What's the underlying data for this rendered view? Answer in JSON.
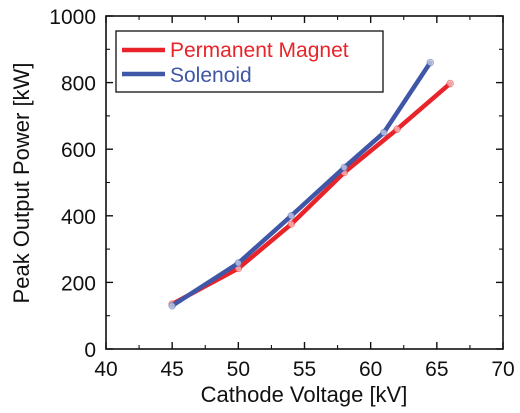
{
  "chart_data": {
    "type": "line",
    "title": "",
    "xlabel": "Cathode Voltage [kV]",
    "ylabel": "Peak Output Power [kW]",
    "xlim": [
      40,
      70
    ],
    "ylim": [
      0,
      1000
    ],
    "x_ticks": [
      40,
      45,
      50,
      55,
      60,
      65,
      70
    ],
    "y_ticks": [
      0,
      200,
      400,
      600,
      800,
      1000
    ],
    "x_tick_labels": [
      "40",
      "45",
      "50",
      "55",
      "60",
      "65",
      "70"
    ],
    "y_tick_labels": [
      "0",
      "200",
      "400",
      "600",
      "800",
      "1000"
    ],
    "grid": false,
    "legend_position": "top-left",
    "series": [
      {
        "name": "Permanent Magnet",
        "color": "#e8242a",
        "points": [
          [
            45,
            135
          ],
          [
            50,
            242
          ],
          [
            54,
            375
          ],
          [
            58,
            530
          ],
          [
            62,
            660
          ],
          [
            66,
            797
          ]
        ]
      },
      {
        "name": "Solenoid",
        "color": "#3f57a6",
        "points": [
          [
            45,
            130
          ],
          [
            50,
            258
          ],
          [
            54,
            400
          ],
          [
            58,
            545
          ],
          [
            61,
            650
          ],
          [
            64.5,
            860
          ]
        ]
      }
    ]
  }
}
